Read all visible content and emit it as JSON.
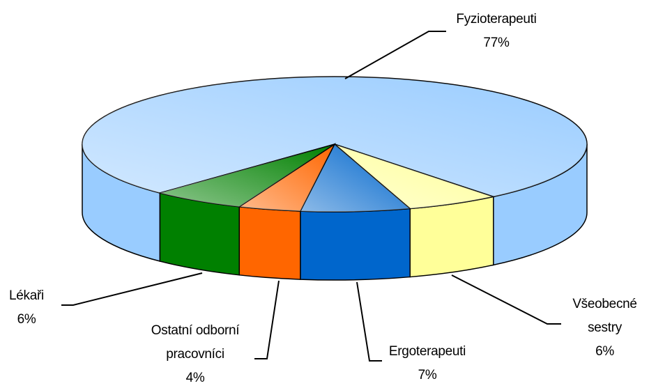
{
  "chart_data": {
    "type": "pie3d",
    "categories": [
      "Fyzioterapeuti",
      "Všeobecné sestry",
      "Ergoterapeuti",
      "Ostatní odborní pracovníci",
      "Lékaři"
    ],
    "values": [
      77,
      6,
      7,
      4,
      6
    ],
    "value_labels": [
      "77%",
      "6%",
      "7%",
      "4%",
      "6%"
    ],
    "colors": [
      "#99ccff",
      "#ffff99",
      "#0066cc",
      "#ff6600",
      "#008000"
    ]
  }
}
